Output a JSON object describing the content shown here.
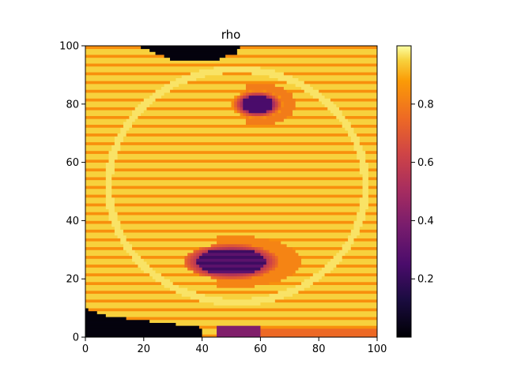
{
  "chart_data": {
    "type": "heatmap",
    "title": "rho",
    "xlabel": "",
    "ylabel": "",
    "xlim": [
      0,
      100
    ],
    "ylim": [
      0,
      100
    ],
    "xticks": [
      "0",
      "20",
      "40",
      "60",
      "80",
      "100"
    ],
    "yticks": [
      "0",
      "20",
      "40",
      "60",
      "80",
      "100"
    ],
    "colormap": "inferno",
    "colorbar": {
      "range": [
        0.0,
        1.0
      ],
      "ticks": [
        "0.2",
        "0.4",
        "0.6",
        "0.8"
      ]
    },
    "grid": false,
    "field": {
      "background_value": 0.95,
      "stripe_value": 0.85,
      "stripe_spacing": 3,
      "low_density_regions": [
        {
          "name": "bottom-left-void",
          "value": 0.02
        },
        {
          "name": "top-void",
          "value": 0.02
        },
        {
          "name": "upper-bubble",
          "center": [
            59,
            80
          ],
          "radius": [
            5,
            3
          ],
          "value": 0.25
        },
        {
          "name": "lower-bubble",
          "center": [
            50,
            26
          ],
          "radius": [
            12,
            5
          ],
          "value": 0.25
        }
      ]
    },
    "colors": {
      "black": "#000004",
      "purple": "#56106e",
      "red": "#bb3754",
      "orange": "#f98c0a",
      "yellow": "#fcffa4"
    }
  }
}
